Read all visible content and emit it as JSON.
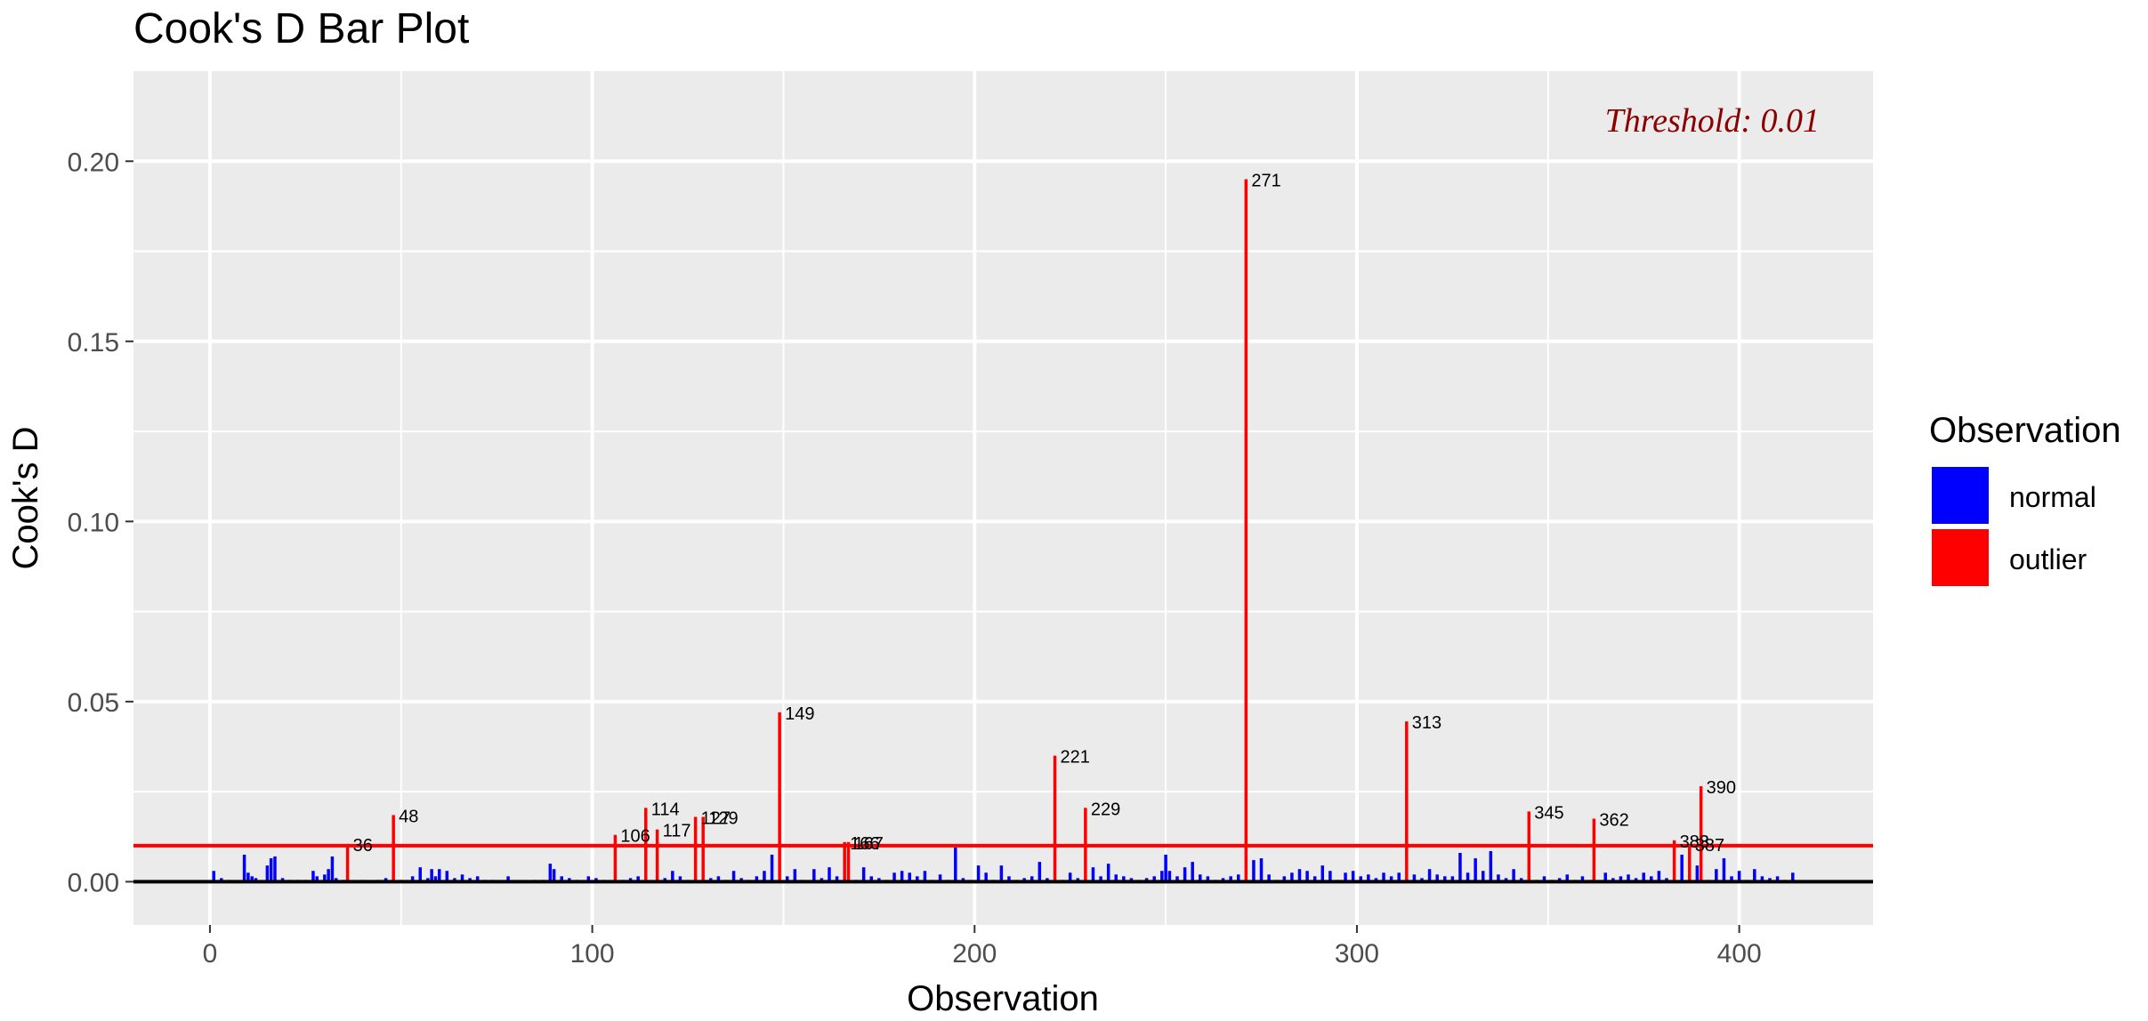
{
  "chart_data": {
    "type": "bar",
    "title": "Cook's D Bar Plot",
    "xlabel": "Observation",
    "ylabel": "Cook's D",
    "xlim": [
      -20,
      435
    ],
    "ylim": [
      -0.012,
      0.225
    ],
    "xticks": [
      0,
      100,
      200,
      300,
      400
    ],
    "yticks": [
      0.0,
      0.05,
      0.1,
      0.15,
      0.2
    ],
    "ytick_labels": [
      "0.00",
      "0.05",
      "0.10",
      "0.15",
      "0.20"
    ],
    "threshold": 0.01,
    "threshold_label": "Threshold: 0.01",
    "grid": true,
    "legend": {
      "title": "Observation",
      "position": "right",
      "entries": [
        {
          "label": "normal",
          "color": "#0000ff"
        },
        {
          "label": "outlier",
          "color": "#ff0000"
        }
      ]
    },
    "colors": {
      "normal": "#0000ff",
      "outlier": "#ff0000",
      "threshold": "#ff0000",
      "threshold_text": "#8b0000",
      "panel": "#ebebeb",
      "grid": "#ffffff"
    },
    "series": [
      {
        "name": "outlier",
        "x": [
          36,
          48,
          106,
          114,
          117,
          127,
          129,
          149,
          166,
          167,
          221,
          229,
          271,
          313,
          345,
          362,
          383,
          387,
          390
        ],
        "values": [
          0.0105,
          0.0185,
          0.013,
          0.0205,
          0.0145,
          0.018,
          0.018,
          0.047,
          0.011,
          0.011,
          0.035,
          0.0205,
          0.195,
          0.0445,
          0.0195,
          0.0175,
          0.0115,
          0.0105,
          0.0265
        ],
        "labels": [
          "36",
          "48",
          "106",
          "114",
          "117",
          "127",
          "129",
          "149",
          "166",
          "167",
          "221",
          "229",
          "271",
          "313",
          "345",
          "362",
          "383",
          "387",
          "390"
        ]
      },
      {
        "name": "normal",
        "x": [
          1,
          3,
          5,
          9,
          10,
          11,
          12,
          15,
          16,
          17,
          19,
          21,
          23,
          25,
          27,
          28,
          30,
          31,
          32,
          33,
          35,
          40,
          44,
          46,
          50,
          53,
          55,
          57,
          58,
          59,
          60,
          62,
          64,
          66,
          68,
          70,
          72,
          74,
          78,
          85,
          87,
          89,
          90,
          92,
          94,
          96,
          99,
          101,
          103,
          108,
          110,
          112,
          119,
          121,
          123,
          125,
          131,
          133,
          135,
          137,
          139,
          141,
          143,
          145,
          147,
          151,
          153,
          155,
          158,
          160,
          162,
          164,
          169,
          171,
          173,
          175,
          177,
          179,
          181,
          183,
          185,
          187,
          189,
          191,
          193,
          195,
          197,
          199,
          201,
          203,
          205,
          207,
          209,
          211,
          213,
          215,
          217,
          219,
          223,
          225,
          227,
          231,
          233,
          235,
          237,
          239,
          241,
          243,
          245,
          247,
          249,
          250,
          251,
          253,
          255,
          257,
          259,
          261,
          263,
          265,
          267,
          269,
          273,
          275,
          277,
          279,
          281,
          283,
          285,
          287,
          289,
          291,
          293,
          295,
          297,
          299,
          301,
          303,
          305,
          307,
          309,
          311,
          315,
          317,
          319,
          321,
          323,
          325,
          327,
          329,
          331,
          333,
          335,
          337,
          339,
          341,
          343,
          347,
          349,
          351,
          353,
          355,
          357,
          359,
          361,
          365,
          367,
          369,
          371,
          373,
          375,
          377,
          379,
          381,
          385,
          389,
          392,
          394,
          396,
          398,
          400,
          402,
          404,
          406,
          408,
          410,
          412,
          414
        ],
        "values": [
          0.003,
          0.001,
          0.0005,
          0.0075,
          0.0025,
          0.0015,
          0.001,
          0.0045,
          0.0065,
          0.007,
          0.001,
          0.0005,
          0.0005,
          0.0005,
          0.003,
          0.0015,
          0.002,
          0.0035,
          0.007,
          0.001,
          0.0005,
          0.0005,
          0.0005,
          0.001,
          0.0005,
          0.0015,
          0.004,
          0.001,
          0.0035,
          0.0015,
          0.0035,
          0.003,
          0.001,
          0.002,
          0.001,
          0.0015,
          0.0005,
          0.0005,
          0.0015,
          0.0005,
          0.0005,
          0.005,
          0.0035,
          0.0015,
          0.001,
          0.0005,
          0.0015,
          0.001,
          0.0005,
          0.0005,
          0.001,
          0.0015,
          0.001,
          0.003,
          0.0015,
          0.0005,
          0.001,
          0.0015,
          0.0005,
          0.003,
          0.001,
          0.0005,
          0.0015,
          0.003,
          0.0075,
          0.0015,
          0.0035,
          0.0005,
          0.0035,
          0.001,
          0.004,
          0.0015,
          0.0005,
          0.004,
          0.0015,
          0.001,
          0.0005,
          0.0025,
          0.003,
          0.0025,
          0.0015,
          0.003,
          0.0005,
          0.002,
          0.0005,
          0.0095,
          0.001,
          0.0005,
          0.0045,
          0.0025,
          0.0005,
          0.0045,
          0.0015,
          0.0005,
          0.001,
          0.0015,
          0.0055,
          0.001,
          0.0005,
          0.0025,
          0.001,
          0.004,
          0.0015,
          0.005,
          0.002,
          0.0015,
          0.001,
          0.0005,
          0.001,
          0.0015,
          0.003,
          0.0075,
          0.003,
          0.0015,
          0.004,
          0.0055,
          0.002,
          0.0015,
          0.0005,
          0.001,
          0.0015,
          0.002,
          0.006,
          0.0065,
          0.002,
          0.0005,
          0.0015,
          0.0025,
          0.0035,
          0.003,
          0.0015,
          0.0045,
          0.003,
          0.0005,
          0.0025,
          0.003,
          0.0015,
          0.002,
          0.001,
          0.0025,
          0.0015,
          0.0025,
          0.002,
          0.001,
          0.0035,
          0.002,
          0.0015,
          0.0015,
          0.008,
          0.0025,
          0.0065,
          0.003,
          0.0085,
          0.002,
          0.001,
          0.0035,
          0.001,
          0.0005,
          0.0015,
          0.0005,
          0.001,
          0.002,
          0.0005,
          0.0015,
          0.0005,
          0.0025,
          0.001,
          0.0015,
          0.002,
          0.001,
          0.0025,
          0.0015,
          0.003,
          0.001,
          0.0075,
          0.0045,
          0.0005,
          0.0035,
          0.0065,
          0.0015,
          0.003,
          0.0005,
          0.0035,
          0.0015,
          0.001,
          0.0015,
          0.0005,
          0.0025
        ]
      }
    ]
  }
}
